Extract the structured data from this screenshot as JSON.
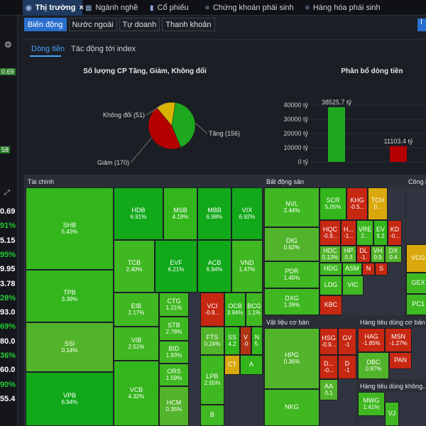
{
  "tabs": [
    {
      "label": "Thị trường",
      "active": true,
      "icon": "globe-icon"
    },
    {
      "label": "Ngành nghề",
      "active": false,
      "icon": "table-icon"
    },
    {
      "label": "Cổ phiếu",
      "active": false,
      "icon": "chart-icon"
    },
    {
      "label": "Chứng khoán phái sinh",
      "active": false,
      "icon": "derivative-icon"
    },
    {
      "label": "Hàng hóa phái sinh",
      "active": false,
      "icon": "derivative-icon"
    }
  ],
  "close_glyph": "×",
  "left_small": [
    "0.69",
    "58"
  ],
  "left_values": [
    {
      "v": "0.69",
      "c": "#ffffff"
    },
    {
      "v": "91%",
      "c": "#22cc33"
    },
    {
      "v": "5.15",
      "c": "#ffffff"
    },
    {
      "v": "95%",
      "c": "#22cc33"
    },
    {
      "v": "9.95",
      "c": "#ffffff"
    },
    {
      "v": "3.78",
      "c": "#ffffff"
    },
    {
      "v": "28%",
      "c": "#22cc33"
    },
    {
      "v": "93.0",
      "c": "#ffffff"
    },
    {
      "v": "69%",
      "c": "#22cc33"
    },
    {
      "v": "80.0",
      "c": "#ffffff"
    },
    {
      "v": "36%",
      "c": "#22cc33"
    },
    {
      "v": "60.0",
      "c": "#ffffff"
    },
    {
      "v": "90%",
      "c": "#22cc33"
    },
    {
      "v": "55.4",
      "c": "#ffffff"
    }
  ],
  "subtabs": [
    "Biến động",
    "Nước ngoài",
    "Tự doanh",
    "Thanh khoản"
  ],
  "right_button_label": "Ⅰ",
  "flow_tabs": [
    "Dòng tiền",
    "Tác động tới index"
  ],
  "chart_data": [
    {
      "type": "pie",
      "title": "Số lượng CP Tăng, Giảm, Không đổi",
      "slices": [
        {
          "label": "Tăng",
          "value": 156,
          "color": "#1ea81e"
        },
        {
          "label": "Giảm",
          "value": 170,
          "color": "#b40000"
        },
        {
          "label": "Không đổi",
          "value": 51,
          "color": "#d8b400"
        }
      ]
    },
    {
      "type": "bar",
      "title": "Phân bổ dòng tiền",
      "categories": [
        "Tăng",
        "Giảm"
      ],
      "values": [
        38525.7,
        11103.4
      ],
      "colors": [
        "#1ea81e",
        "#b40000"
      ],
      "value_labels": [
        "38525.7 tỷ",
        "11103.4 tỷ"
      ],
      "ylim": [
        0,
        40000
      ],
      "yticks": [
        "0 tỷ",
        "10000 tỷ",
        "20000 tỷ",
        "30000 tỷ",
        "40000 tỷ"
      ]
    }
  ],
  "heatmap": {
    "groups": [
      {
        "title": "Tài chính",
        "cells": [
          {
            "t": "SHB",
            "p": "5.43%",
            "c": "#33b61c"
          },
          {
            "t": "HDB",
            "p": "6.91%",
            "c": "#11a81a"
          },
          {
            "t": "MSB",
            "p": "4.19%",
            "c": "#33b61c"
          },
          {
            "t": "MBB",
            "p": "6.98%",
            "c": "#11a81a"
          },
          {
            "t": "VIX",
            "p": "6.92%",
            "c": "#11a81a"
          },
          {
            "t": "TPB",
            "p": "3.39%",
            "c": "#33b61c"
          },
          {
            "t": "TCB",
            "p": "2.40%",
            "c": "#3fb821"
          },
          {
            "t": "EVF",
            "p": "6.21%",
            "c": "#11a81a"
          },
          {
            "t": "ACB",
            "p": "6.94%",
            "c": "#11a81a"
          },
          {
            "t": "VND",
            "p": "1.47%",
            "c": "#3fb821"
          },
          {
            "t": "SSI",
            "p": "0.14%",
            "c": "#52b42a"
          },
          {
            "t": "EIB",
            "p": "2.17%",
            "c": "#3fb821"
          },
          {
            "t": "CTG",
            "p": "1.21%",
            "c": "#3fb821"
          },
          {
            "t": "VCI",
            "p": "-0.8...",
            "c": "#c62812"
          },
          {
            "t": "OCB",
            "p": "3.94%",
            "c": "#33b61c"
          },
          {
            "t": "BCG",
            "p": "1.1%",
            "c": "#3fb821"
          },
          {
            "t": "STB",
            "p": "2.78%",
            "c": "#3fb821"
          },
          {
            "t": "FTS",
            "p": "0.24%",
            "c": "#52b42a"
          },
          {
            "t": "SS",
            "p": "4.2",
            "c": "#33b61c"
          },
          {
            "t": "V",
            "p": "-0",
            "c": "#b03512"
          },
          {
            "t": "N",
            "p": "5.",
            "c": "#33b61c"
          },
          {
            "t": "VIB",
            "p": "2.51%",
            "c": "#3fb821"
          },
          {
            "t": "BID",
            "p": "1.93%",
            "c": "#3fb821"
          },
          {
            "t": "CT",
            "p": "",
            "c": "#d9a80c"
          },
          {
            "t": "A",
            "p": "",
            "c": "#33b61c"
          },
          {
            "t": "VPB",
            "p": "6.94%",
            "c": "#11a81a"
          },
          {
            "t": "ORS",
            "p": "1.59%",
            "c": "#3fb821"
          },
          {
            "t": "VCB",
            "p": "4.32%",
            "c": "#33b61c"
          },
          {
            "t": "HCM",
            "p": "0.35%",
            "c": "#52b42a"
          },
          {
            "t": "LPB",
            "p": "2.55%",
            "c": "#3fb821"
          },
          {
            "t": "B",
            "p": "",
            "c": "#3fb821"
          }
        ]
      },
      {
        "title": "Bất động sản",
        "cells": [
          {
            "t": "NVL",
            "p": "2.44%",
            "c": "#3fb821"
          },
          {
            "t": "SCR",
            "p": "5.05%",
            "c": "#33b61c"
          },
          {
            "t": "KHG",
            "p": "-0.5...",
            "c": "#c62812"
          },
          {
            "t": "TCH",
            "p": "0...",
            "c": "#d9a80c"
          },
          {
            "t": "DIG",
            "p": "0.62%",
            "c": "#52b42a"
          },
          {
            "t": "HQC",
            "p": "-0.9...",
            "c": "#c62812"
          },
          {
            "t": "H...",
            "p": "-1...",
            "c": "#c62812"
          },
          {
            "t": "VRE",
            "p": "2...",
            "c": "#3fb821"
          },
          {
            "t": "EV",
            "p": "5.2",
            "c": "#33b61c"
          },
          {
            "t": "KD",
            "p": "-0...",
            "c": "#c62812"
          },
          {
            "t": "PDR",
            "p": "1.45%",
            "c": "#3fb821"
          },
          {
            "t": "HDC",
            "p": "0.13%",
            "c": "#52b42a"
          },
          {
            "t": "HP",
            "p": "0.3",
            "c": "#52b42a"
          },
          {
            "t": "DL",
            "p": "-1.",
            "c": "#c62812"
          },
          {
            "t": "VH",
            "p": "0.9",
            "c": "#52b42a"
          },
          {
            "t": "DX",
            "p": "0.4",
            "c": "#52b42a"
          },
          {
            "t": "HDG",
            "p": "",
            "c": "#3fb821"
          },
          {
            "t": "ASM",
            "p": "",
            "c": "#3fb821"
          },
          {
            "t": "N",
            "p": "",
            "c": "#c62812"
          },
          {
            "t": "S",
            "p": "",
            "c": "#c62812"
          },
          {
            "t": "DXG",
            "p": "1.39%",
            "c": "#3fb821"
          },
          {
            "t": "LDG",
            "p": "",
            "c": "#3fb821"
          },
          {
            "t": "VIC",
            "p": "",
            "c": "#3fb821"
          },
          {
            "t": "KBC",
            "p": "",
            "c": "#c62812"
          }
        ]
      },
      {
        "title": "Công n...",
        "cells": [
          {
            "t": "VCG",
            "p": "",
            "c": "#d9a80c"
          },
          {
            "t": "GEX",
            "p": "",
            "c": "#3fb821"
          },
          {
            "t": "PC1",
            "p": "",
            "c": "#3fb821"
          }
        ]
      },
      {
        "title": "Vật liệu cơ bản",
        "cells": [
          {
            "t": "HPG",
            "p": "0.36%",
            "c": "#52b42a"
          },
          {
            "t": "HSG",
            "p": "-0.9...",
            "c": "#c62812"
          },
          {
            "t": "GV",
            "p": "-1",
            "c": "#c62812"
          },
          {
            "t": "D...",
            "p": "-0...",
            "c": "#c62812"
          },
          {
            "t": "D",
            "p": "-1",
            "c": "#c62812"
          },
          {
            "t": "AA",
            "p": "0.1",
            "c": "#52b42a"
          },
          {
            "t": "NKG",
            "p": "",
            "c": "#3fb821"
          }
        ]
      },
      {
        "title": "Hàng tiêu dùng cơ bản",
        "cells": [
          {
            "t": "HAG",
            "p": "-1.85%",
            "c": "#c62812"
          },
          {
            "t": "MSN",
            "p": "-1.27%",
            "c": "#c62812"
          },
          {
            "t": "DBC",
            "p": "0.97%",
            "c": "#52b42a"
          },
          {
            "t": "PAN",
            "p": "",
            "c": "#c62812"
          }
        ]
      },
      {
        "title": "Hàng tiêu dùng không...",
        "cells": [
          {
            "t": "MWG",
            "p": "1.41%",
            "c": "#3fb821"
          },
          {
            "t": "VJ",
            "p": "",
            "c": "#3fb821"
          }
        ]
      }
    ]
  }
}
